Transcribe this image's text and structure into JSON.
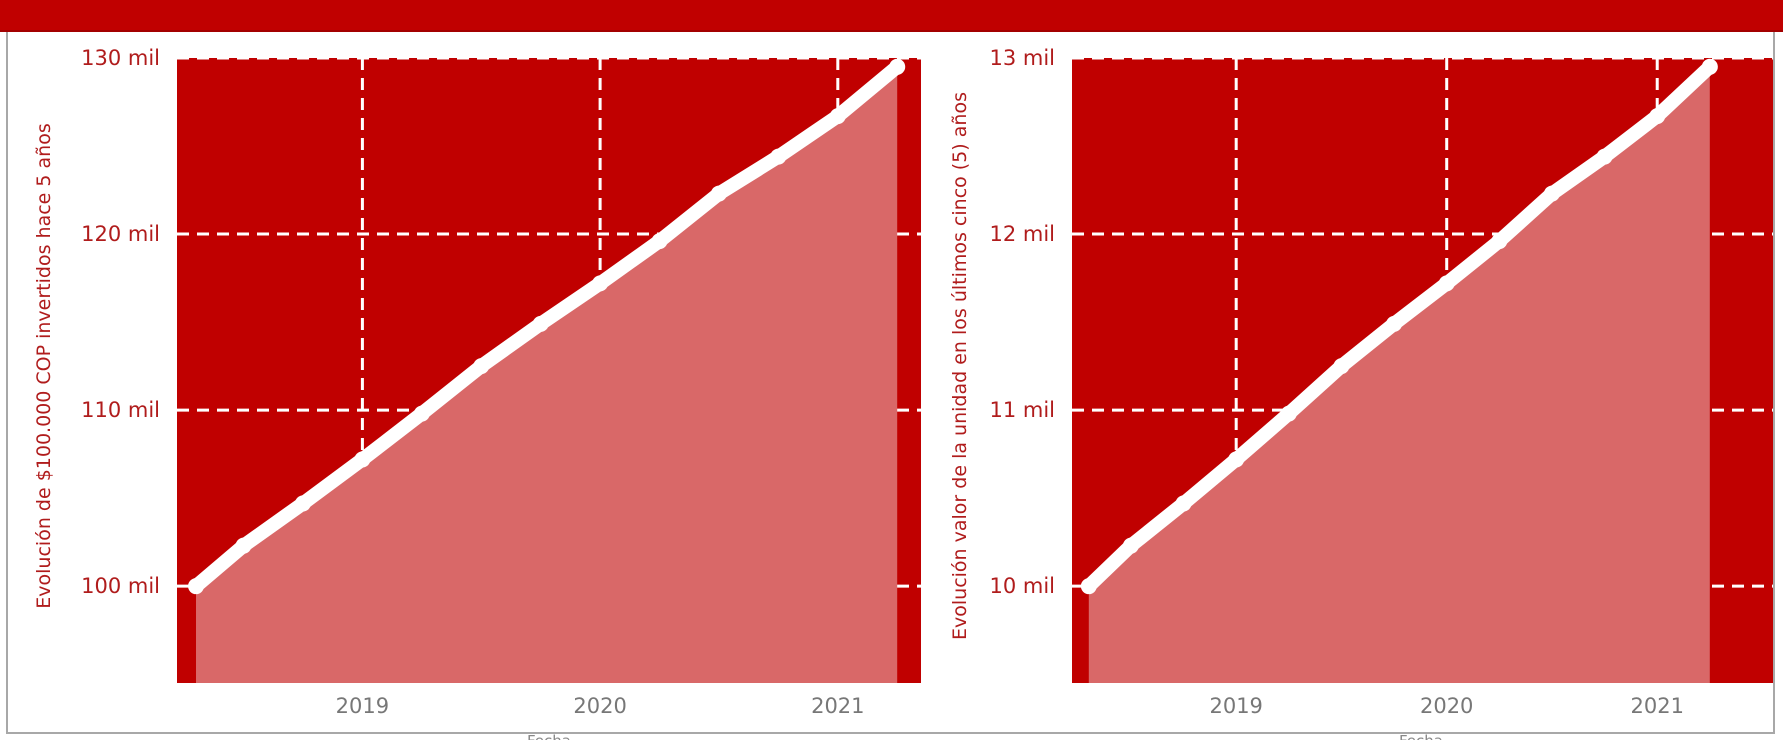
{
  "colors": {
    "plot_background": "#c00000",
    "area_fill": "#d96868",
    "line": "#ffffff",
    "grid": "#ffffff",
    "y_tick_text": "#b01c1c",
    "x_tick_text": "#777777"
  },
  "chart_data": [
    {
      "type": "area",
      "ylabel": "Evolución de $100.000 COP invertidos hace 5 años",
      "xlabel": "Fecha",
      "xticks": [
        "2019",
        "2020",
        "2021"
      ],
      "yticks": [
        "100 mil",
        "110 mil",
        "120 mil",
        "130 mil"
      ],
      "ylim": [
        94500,
        130000
      ],
      "xlim": [
        2018.22,
        2021.35
      ],
      "grid": true,
      "line_style": "white-markers",
      "x": [
        2018.3,
        2018.5,
        2018.75,
        2019.0,
        2019.25,
        2019.5,
        2019.75,
        2020.0,
        2020.25,
        2020.5,
        2020.75,
        2021.0,
        2021.25
      ],
      "y": [
        100000,
        102300,
        104700,
        107200,
        109800,
        112500,
        114900,
        117200,
        119600,
        122300,
        124400,
        126700,
        129500
      ]
    },
    {
      "type": "area",
      "ylabel": "Evolución valor de la unidad en los últimos cinco (5) años",
      "xlabel": "Fecha",
      "xticks": [
        "2019",
        "2020",
        "2021"
      ],
      "yticks": [
        "10 mil",
        "11 mil",
        "12 mil",
        "13 mil"
      ],
      "ylim": [
        9450,
        13000
      ],
      "xlim": [
        2018.22,
        2021.55
      ],
      "grid": true,
      "line_style": "white-markers",
      "x": [
        2018.3,
        2018.5,
        2018.75,
        2019.0,
        2019.25,
        2019.5,
        2019.75,
        2020.0,
        2020.25,
        2020.5,
        2020.75,
        2021.0,
        2021.25
      ],
      "y": [
        10000,
        10230,
        10470,
        10720,
        10980,
        11250,
        11490,
        11720,
        11960,
        12230,
        12440,
        12670,
        12950
      ]
    }
  ]
}
